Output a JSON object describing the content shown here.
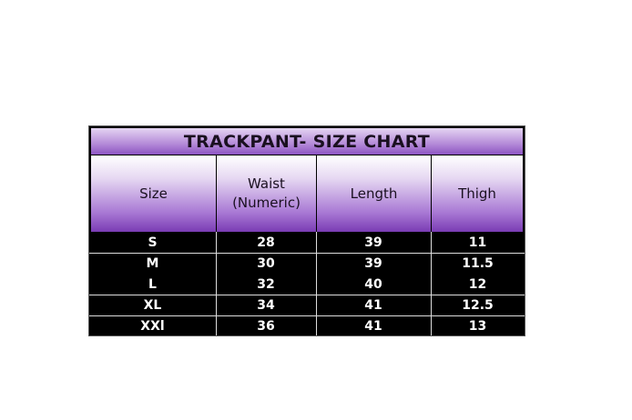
{
  "table": {
    "title": "TRACKPANT- SIZE CHART",
    "headers": [
      "Size",
      "Waist\n(Numeric)",
      "Length",
      "Thigh"
    ],
    "rows": [
      [
        "S",
        "28",
        "39",
        "11"
      ],
      [
        "M",
        "30",
        "39",
        "11.5"
      ],
      [
        "L",
        "32",
        "40",
        "12"
      ],
      [
        "XL",
        "34",
        "41",
        "12.5"
      ],
      [
        "XXl",
        "36",
        "41",
        "13"
      ]
    ],
    "colors": {
      "header_purple": "#7a3cb4",
      "body_bg": "#000000",
      "body_text": "#ffffff"
    }
  }
}
